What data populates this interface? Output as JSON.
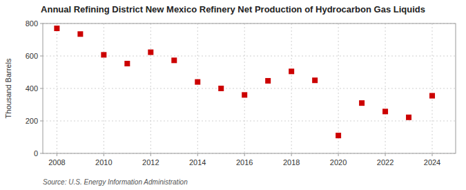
{
  "chart_data": {
    "type": "scatter",
    "title": "Annual Refining District New Mexico Refinery Net Production of Hydrocarbon Gas Liquids",
    "ylabel": "Thousand Barrels",
    "source": "Source: U.S. Energy Information Administration",
    "x": [
      2008,
      2009,
      2010,
      2011,
      2012,
      2013,
      2014,
      2015,
      2016,
      2017,
      2018,
      2019,
      2020,
      2021,
      2022,
      2023,
      2024
    ],
    "values": [
      770,
      735,
      607,
      553,
      623,
      573,
      440,
      400,
      360,
      447,
      505,
      450,
      110,
      310,
      258,
      222,
      355
    ],
    "color": "#cc0000",
    "marker": "square",
    "xlim": [
      2007.4,
      2025.0
    ],
    "xticks": [
      2008,
      2010,
      2012,
      2014,
      2016,
      2018,
      2020,
      2022,
      2024
    ],
    "ylim": [
      0,
      800
    ],
    "yticks": [
      0,
      200,
      400,
      600,
      800
    ],
    "grid": true
  }
}
